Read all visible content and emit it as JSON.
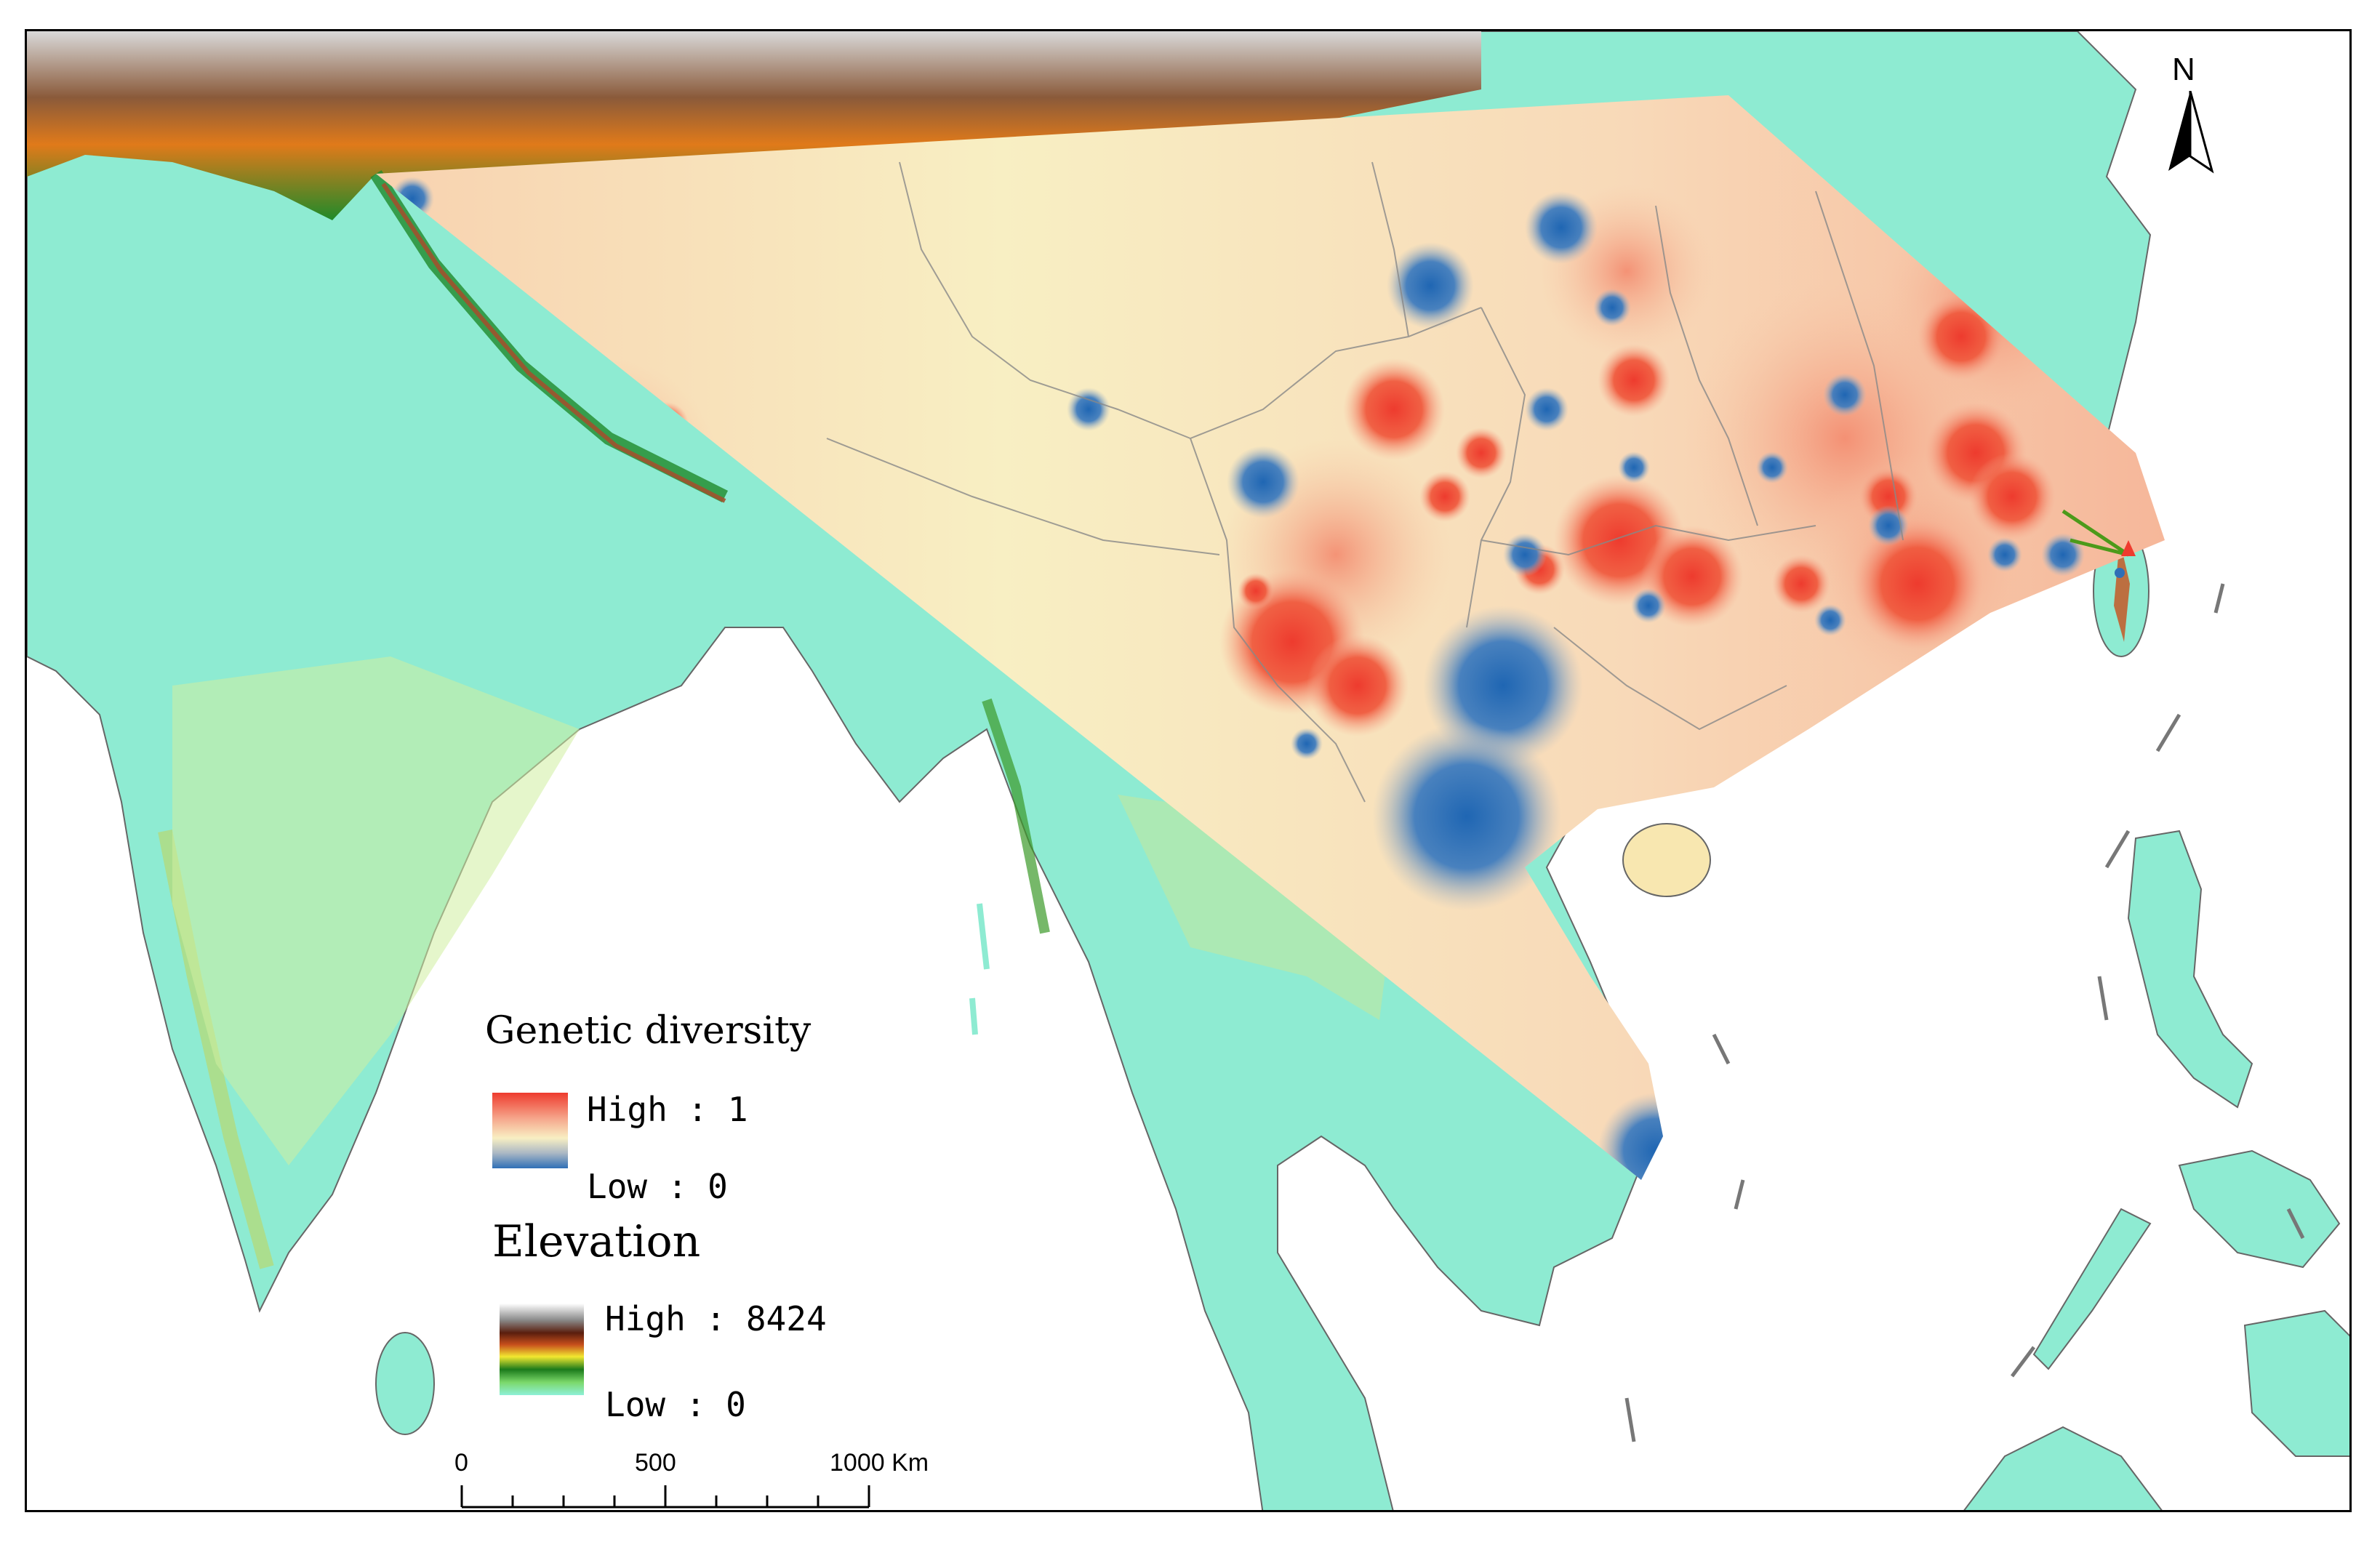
{
  "legend": {
    "genetic": {
      "title": "Genetic diversity",
      "high_label": "High : 1",
      "low_label": "Low : 0",
      "colors": [
        "#ee3b2e",
        "#f6a98e",
        "#f8efc3",
        "#aab7c4",
        "#2f6fb6"
      ]
    },
    "elevation": {
      "title": "Elevation",
      "high_label": "High : 8424",
      "low_label": "Low : 0",
      "colors": [
        "#ffffff",
        "#8a8a8a",
        "#5a1e0e",
        "#c8501c",
        "#f2e830",
        "#1b7a1b",
        "#7bd86a",
        "#8ef0d8"
      ]
    }
  },
  "scale_bar": {
    "labels": [
      "0",
      "500",
      "1000 Km"
    ]
  },
  "north_arrow": {
    "letter": "N",
    "icon": "north-arrow-icon"
  },
  "colors": {
    "lowland": "#8eebd2",
    "sea": "#ffffff",
    "boundary": "#666666",
    "high_diversity": "#ee3b2e",
    "low_diversity": "#2f6fb6",
    "mid_diversity": "#f8efc3"
  }
}
